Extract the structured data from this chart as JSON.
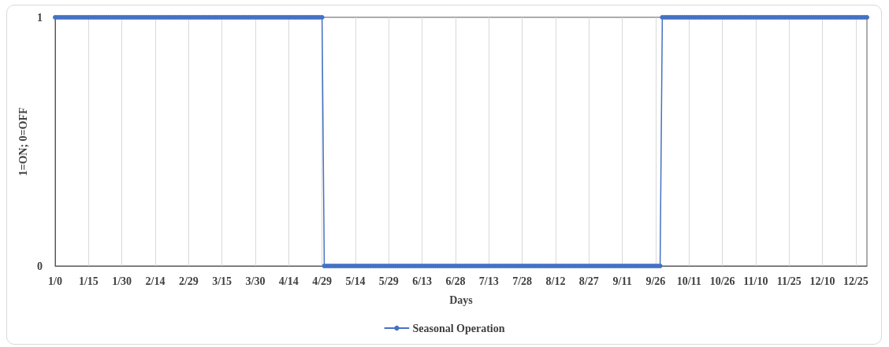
{
  "chart_data": {
    "type": "line",
    "xlabel": "Days",
    "ylabel": "1=ON; 0=OFF",
    "categories": [
      "1/0",
      null,
      null,
      null,
      null,
      null,
      null,
      null,
      null,
      null,
      null,
      null,
      null,
      null,
      null,
      "1/15",
      null,
      null,
      null,
      null,
      null,
      null,
      null,
      null,
      null,
      null,
      null,
      null,
      null,
      null,
      "1/30",
      null,
      null,
      null,
      null,
      null,
      null,
      null,
      null,
      null,
      null,
      null,
      null,
      null,
      null,
      "2/14",
      null,
      null,
      null,
      null,
      null,
      null,
      null,
      null,
      null,
      null,
      null,
      null,
      null,
      null,
      "2/29",
      null,
      null,
      null,
      null,
      null,
      null,
      null,
      null,
      null,
      null,
      null,
      null,
      null,
      null,
      "3/15",
      null,
      null,
      null,
      null,
      null,
      null,
      null,
      null,
      null,
      null,
      null,
      null,
      null,
      null,
      "3/30",
      null,
      null,
      null,
      null,
      null,
      null,
      null,
      null,
      null,
      null,
      null,
      null,
      null,
      null,
      "4/14",
      null,
      null,
      null,
      null,
      null,
      null,
      null,
      null,
      null,
      null,
      null,
      null,
      null,
      null,
      "4/29",
      null,
      null,
      null,
      null,
      null,
      null,
      null,
      null,
      null,
      null,
      null,
      null,
      null,
      null,
      "5/14",
      null,
      null,
      null,
      null,
      null,
      null,
      null,
      null,
      null,
      null,
      null,
      null,
      null,
      null,
      "5/29",
      null,
      null,
      null,
      null,
      null,
      null,
      null,
      null,
      null,
      null,
      null,
      null,
      null,
      null,
      "6/13",
      null,
      null,
      null,
      null,
      null,
      null,
      null,
      null,
      null,
      null,
      null,
      null,
      null,
      null,
      "6/28",
      null,
      null,
      null,
      null,
      null,
      null,
      null,
      null,
      null,
      null,
      null,
      null,
      null,
      null,
      "7/13",
      null,
      null,
      null,
      null,
      null,
      null,
      null,
      null,
      null,
      null,
      null,
      null,
      null,
      null,
      "7/28",
      null,
      null,
      null,
      null,
      null,
      null,
      null,
      null,
      null,
      null,
      null,
      null,
      null,
      null,
      "8/12",
      null,
      null,
      null,
      null,
      null,
      null,
      null,
      null,
      null,
      null,
      null,
      null,
      null,
      null,
      "8/27",
      null,
      null,
      null,
      null,
      null,
      null,
      null,
      null,
      null,
      null,
      null,
      null,
      null,
      null,
      "9/11",
      null,
      null,
      null,
      null,
      null,
      null,
      null,
      null,
      null,
      null,
      null,
      null,
      null,
      null,
      "9/26",
      null,
      null,
      null,
      null,
      null,
      null,
      null,
      null,
      null,
      null,
      null,
      null,
      null,
      null,
      "10/11",
      null,
      null,
      null,
      null,
      null,
      null,
      null,
      null,
      null,
      null,
      null,
      null,
      null,
      null,
      "10/26",
      null,
      null,
      null,
      null,
      null,
      null,
      null,
      null,
      null,
      null,
      null,
      null,
      null,
      null,
      "11/10",
      null,
      null,
      null,
      null,
      null,
      null,
      null,
      null,
      null,
      null,
      null,
      null,
      null,
      null,
      "11/25",
      null,
      null,
      null,
      null,
      null,
      null,
      null,
      null,
      null,
      null,
      null,
      null,
      null,
      null,
      "12/10",
      null,
      null,
      null,
      null,
      null,
      null,
      null,
      null,
      null,
      null,
      null,
      null,
      null,
      null,
      "12/25",
      null,
      null,
      null,
      null,
      null
    ],
    "ylim": [
      0,
      1
    ],
    "yticks": [
      0,
      1
    ],
    "series": [
      {
        "name": "Seasonal Operation",
        "color": "#4472c4",
        "values": [
          1,
          1,
          1,
          1,
          1,
          1,
          1,
          1,
          1,
          1,
          1,
          1,
          1,
          1,
          1,
          1,
          1,
          1,
          1,
          1,
          1,
          1,
          1,
          1,
          1,
          1,
          1,
          1,
          1,
          1,
          1,
          1,
          1,
          1,
          1,
          1,
          1,
          1,
          1,
          1,
          1,
          1,
          1,
          1,
          1,
          1,
          1,
          1,
          1,
          1,
          1,
          1,
          1,
          1,
          1,
          1,
          1,
          1,
          1,
          1,
          1,
          1,
          1,
          1,
          1,
          1,
          1,
          1,
          1,
          1,
          1,
          1,
          1,
          1,
          1,
          1,
          1,
          1,
          1,
          1,
          1,
          1,
          1,
          1,
          1,
          1,
          1,
          1,
          1,
          1,
          1,
          1,
          1,
          1,
          1,
          1,
          1,
          1,
          1,
          1,
          1,
          1,
          1,
          1,
          1,
          1,
          1,
          1,
          1,
          1,
          1,
          1,
          1,
          1,
          1,
          1,
          1,
          1,
          1,
          1,
          1,
          0,
          0,
          0,
          0,
          0,
          0,
          0,
          0,
          0,
          0,
          0,
          0,
          0,
          0,
          0,
          0,
          0,
          0,
          0,
          0,
          0,
          0,
          0,
          0,
          0,
          0,
          0,
          0,
          0,
          0,
          0,
          0,
          0,
          0,
          0,
          0,
          0,
          0,
          0,
          0,
          0,
          0,
          0,
          0,
          0,
          0,
          0,
          0,
          0,
          0,
          0,
          0,
          0,
          0,
          0,
          0,
          0,
          0,
          0,
          0,
          0,
          0,
          0,
          0,
          0,
          0,
          0,
          0,
          0,
          0,
          0,
          0,
          0,
          0,
          0,
          0,
          0,
          0,
          0,
          0,
          0,
          0,
          0,
          0,
          0,
          0,
          0,
          0,
          0,
          0,
          0,
          0,
          0,
          0,
          0,
          0,
          0,
          0,
          0,
          0,
          0,
          0,
          0,
          0,
          0,
          0,
          0,
          0,
          0,
          0,
          0,
          0,
          0,
          0,
          0,
          0,
          0,
          0,
          0,
          0,
          0,
          0,
          0,
          0,
          0,
          0,
          0,
          0,
          0,
          0,
          0,
          0,
          0,
          0,
          0,
          0,
          0,
          0,
          0,
          0,
          0,
          0,
          0,
          0,
          0,
          0,
          0,
          0,
          0,
          0,
          0,
          0,
          1,
          1,
          1,
          1,
          1,
          1,
          1,
          1,
          1,
          1,
          1,
          1,
          1,
          1,
          1,
          1,
          1,
          1,
          1,
          1,
          1,
          1,
          1,
          1,
          1,
          1,
          1,
          1,
          1,
          1,
          1,
          1,
          1,
          1,
          1,
          1,
          1,
          1,
          1,
          1,
          1,
          1,
          1,
          1,
          1,
          1,
          1,
          1,
          1,
          1,
          1,
          1,
          1,
          1,
          1,
          1,
          1,
          1,
          1,
          1,
          1,
          1,
          1,
          1,
          1,
          1,
          1,
          1,
          1,
          1,
          1,
          1,
          1,
          1,
          1,
          1,
          1,
          1,
          1,
          1,
          1,
          1,
          1,
          1,
          1,
          1,
          1,
          1,
          1,
          1,
          1,
          1,
          1
        ]
      }
    ],
    "grid": "x",
    "legend": "bottom",
    "marker": "circle",
    "line_style": "solid"
  }
}
